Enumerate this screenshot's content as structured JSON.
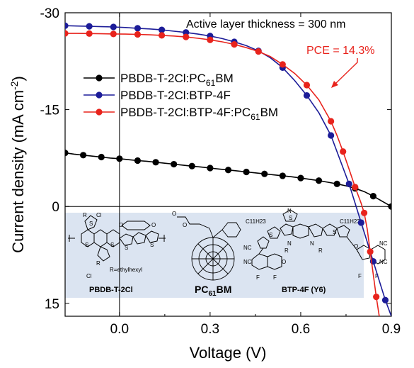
{
  "chart_data": {
    "type": "line",
    "xlabel": "Voltage (V)",
    "ylabel": "Current density (mA cm",
    "ylabel_sup": "-2",
    "ylabel_end": ")",
    "xlim": [
      -0.18,
      0.9
    ],
    "ylim": [
      17,
      -30
    ],
    "x_ticks": [
      0.0,
      0.3,
      0.6,
      0.9
    ],
    "x_tick_labels": [
      "0.0",
      "0.3",
      "0.6",
      "0.9"
    ],
    "y_ticks": [
      -30,
      -15,
      0,
      15
    ],
    "y_tick_labels": [
      "-30",
      "-15",
      "0",
      "15"
    ],
    "zero_lines": true,
    "legend_position": "upper-left",
    "annotation": "Active layer thickness = 300 nm",
    "pce_label": "PCE = 14.3%",
    "pce_color": "#e8231c",
    "series": [
      {
        "legend_main": "PBDB-T-2Cl:PC",
        "legend_sub": "61",
        "legend_tail": "BM",
        "color": "#000000",
        "x": [
          -0.18,
          -0.15,
          -0.12,
          -0.09,
          -0.06,
          -0.03,
          0.0,
          0.03,
          0.06,
          0.09,
          0.12,
          0.15,
          0.18,
          0.21,
          0.24,
          0.27,
          0.3,
          0.33,
          0.36,
          0.39,
          0.42,
          0.45,
          0.48,
          0.51,
          0.54,
          0.57,
          0.6,
          0.63,
          0.66,
          0.69,
          0.72,
          0.75,
          0.78,
          0.81,
          0.84,
          0.87,
          0.9
        ],
        "y": [
          -8.3,
          -8.1,
          -7.95,
          -7.8,
          -7.65,
          -7.5,
          -7.4,
          -7.25,
          -7.1,
          -7.0,
          -6.85,
          -6.7,
          -6.55,
          -6.4,
          -6.25,
          -6.1,
          -5.95,
          -5.8,
          -5.65,
          -5.5,
          -5.35,
          -5.2,
          -5.05,
          -4.9,
          -4.75,
          -4.6,
          -4.4,
          -4.2,
          -4.0,
          -3.75,
          -3.5,
          -3.2,
          -2.8,
          -2.3,
          -1.6,
          -0.8,
          0.0
        ],
        "markers_every": 2
      },
      {
        "legend_main": "PBDB-T-2Cl:BTP-4F",
        "legend_sub": "",
        "legend_tail": "",
        "color": "#1c1c98",
        "x": [
          -0.18,
          -0.14,
          -0.1,
          -0.06,
          -0.02,
          0.02,
          0.06,
          0.1,
          0.14,
          0.18,
          0.22,
          0.26,
          0.3,
          0.34,
          0.38,
          0.42,
          0.46,
          0.5,
          0.54,
          0.58,
          0.62,
          0.66,
          0.7,
          0.74,
          0.76,
          0.78,
          0.8,
          0.82,
          0.84,
          0.86,
          0.88,
          0.9
        ],
        "y": [
          -28.0,
          -27.95,
          -27.9,
          -27.85,
          -27.8,
          -27.72,
          -27.6,
          -27.5,
          -27.35,
          -27.15,
          -26.95,
          -26.7,
          -26.4,
          -26.0,
          -25.5,
          -24.9,
          -24.1,
          -23.0,
          -21.5,
          -19.5,
          -17.2,
          -14.5,
          -11.0,
          -6.0,
          -3.5,
          -0.5,
          2.5,
          5.5,
          8.5,
          11.5,
          14.5,
          17.0
        ],
        "markers_every": 2
      },
      {
        "legend_main": "PBDB-T-2Cl:BTP-4F:PC",
        "legend_sub": "61",
        "legend_tail": "BM",
        "color": "#e8231c",
        "x": [
          -0.18,
          -0.14,
          -0.1,
          -0.06,
          -0.02,
          0.02,
          0.06,
          0.1,
          0.14,
          0.18,
          0.22,
          0.26,
          0.3,
          0.34,
          0.38,
          0.42,
          0.46,
          0.5,
          0.54,
          0.58,
          0.62,
          0.66,
          0.7,
          0.72,
          0.74,
          0.76,
          0.78,
          0.8,
          0.81,
          0.82,
          0.83,
          0.84,
          0.85,
          0.86
        ],
        "y": [
          -26.8,
          -26.8,
          -26.78,
          -26.75,
          -26.72,
          -26.7,
          -26.65,
          -26.58,
          -26.5,
          -26.4,
          -26.25,
          -26.05,
          -25.8,
          -25.5,
          -25.1,
          -24.6,
          -24.0,
          -23.2,
          -22.0,
          -20.6,
          -18.8,
          -16.5,
          -13.2,
          -11.0,
          -8.5,
          -5.8,
          -3.0,
          -0.5,
          1.0,
          3.5,
          7.0,
          10.5,
          14.0,
          17.0
        ],
        "markers_every": 2
      }
    ]
  },
  "inset": {
    "donor_label": "PBDB-T-2Cl",
    "donor_substituent": "R=ethylhexyl",
    "fullerene_label_main": "PC",
    "fullerene_label_sub": "61",
    "fullerene_label_tail": "BM",
    "acceptor_label": "BTP-4F (Y6)",
    "atom_labels": {
      "r": "R",
      "cl": "Cl",
      "s": "S",
      "o": "O",
      "n": "N",
      "f": "F",
      "cn": "NC",
      "alkyl": "C11H23"
    },
    "background_color": "#dbe4f1"
  }
}
